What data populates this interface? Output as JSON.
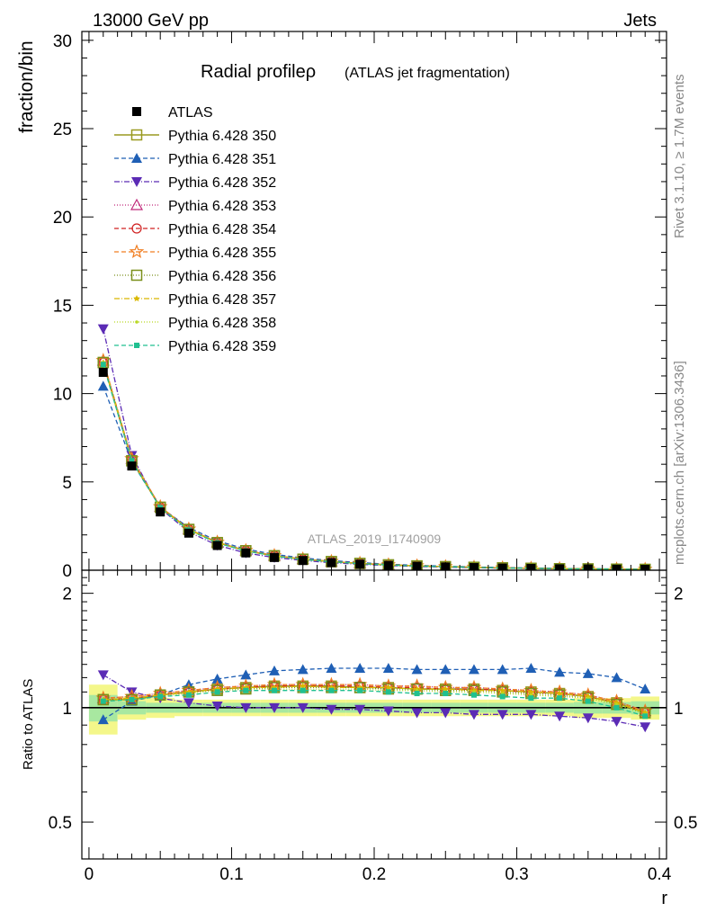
{
  "header": {
    "energy": "13000 GeV pp",
    "process": "Jets"
  },
  "side_text": {
    "rivet": "Rivet 3.1.10, ≥ 1.7M events",
    "mcplots": "mcplots.cern.ch [arXiv:1306.3436]"
  },
  "watermark": "ATLAS_2019_I1740909",
  "chart_data": {
    "type": "line",
    "title": "Radial profileρ",
    "subtitle": "(ATLAS jet fragmentation)",
    "xlabel": "r",
    "ylabel": "fraction/bin",
    "ratio_ylabel": "Ratio to ATLAS",
    "xlim": [
      -0.005,
      0.405
    ],
    "ylim": [
      0,
      30.5
    ],
    "ratio_ylim": [
      0.4,
      2.3
    ],
    "x_ticks": [
      0,
      0.1,
      0.2,
      0.3,
      0.4
    ],
    "x_tick_labels": [
      "0",
      "0.1",
      "0.2",
      "0.3",
      "0.4"
    ],
    "y_ticks": [
      0,
      5,
      10,
      15,
      20,
      25,
      30
    ],
    "y_tick_labels": [
      "0",
      "5",
      "10",
      "15",
      "20",
      "25",
      "30"
    ],
    "ratio_ticks": [
      0.5,
      1,
      2
    ],
    "ratio_tick_labels": [
      "0.5",
      "1",
      "2"
    ],
    "x": [
      0.01,
      0.03,
      0.05,
      0.07,
      0.09,
      0.11,
      0.13,
      0.15,
      0.17,
      0.19,
      0.21,
      0.23,
      0.25,
      0.27,
      0.29,
      0.31,
      0.33,
      0.35,
      0.37,
      0.39
    ],
    "data": {
      "name": "ATLAS",
      "values": [
        11.2,
        5.9,
        3.3,
        2.1,
        1.4,
        0.98,
        0.72,
        0.55,
        0.43,
        0.34,
        0.27,
        0.22,
        0.18,
        0.15,
        0.12,
        0.1,
        0.08,
        0.07,
        0.06,
        0.05
      ],
      "band_outer": [
        0.15,
        0.07,
        0.06,
        0.05,
        0.05,
        0.05,
        0.05,
        0.05,
        0.05,
        0.05,
        0.05,
        0.05,
        0.05,
        0.05,
        0.05,
        0.05,
        0.05,
        0.06,
        0.06,
        0.07
      ],
      "band_inner": [
        0.08,
        0.04,
        0.03,
        0.03,
        0.03,
        0.03,
        0.03,
        0.03,
        0.03,
        0.03,
        0.03,
        0.03,
        0.03,
        0.03,
        0.03,
        0.03,
        0.03,
        0.035,
        0.035,
        0.04
      ]
    },
    "series": [
      {
        "name": "Pythia 6.428 350",
        "color": "#9a9a20",
        "dash": "",
        "marker": "square-open",
        "ratio": [
          1.05,
          1.05,
          1.08,
          1.1,
          1.12,
          1.13,
          1.14,
          1.14,
          1.14,
          1.13,
          1.13,
          1.12,
          1.12,
          1.12,
          1.11,
          1.1,
          1.09,
          1.07,
          1.03,
          0.97
        ]
      },
      {
        "name": "Pythia 6.428 351",
        "color": "#1f5fb5",
        "dash": "5,3",
        "marker": "triangle-up",
        "ratio": [
          0.93,
          1.04,
          1.08,
          1.15,
          1.19,
          1.22,
          1.25,
          1.26,
          1.27,
          1.27,
          1.27,
          1.26,
          1.26,
          1.26,
          1.26,
          1.27,
          1.24,
          1.23,
          1.2,
          1.12
        ]
      },
      {
        "name": "Pythia 6.428 352",
        "color": "#5b2bb5",
        "dash": "6,2,1,2",
        "marker": "triangle-down",
        "ratio": [
          1.22,
          1.1,
          1.06,
          1.03,
          1.01,
          1.0,
          1.0,
          1.0,
          0.99,
          0.99,
          0.98,
          0.97,
          0.97,
          0.96,
          0.96,
          0.96,
          0.95,
          0.94,
          0.92,
          0.89
        ]
      },
      {
        "name": "Pythia 6.428 353",
        "color": "#c0287a",
        "dash": "1,2",
        "marker": "triangle-up-open",
        "ratio": [
          1.06,
          1.07,
          1.09,
          1.11,
          1.13,
          1.14,
          1.15,
          1.15,
          1.15,
          1.15,
          1.14,
          1.14,
          1.13,
          1.13,
          1.12,
          1.11,
          1.1,
          1.08,
          1.04,
          0.98
        ]
      },
      {
        "name": "Pythia 6.428 354",
        "color": "#d02020",
        "dash": "5,3",
        "marker": "circle-open",
        "ratio": [
          1.05,
          1.06,
          1.08,
          1.1,
          1.12,
          1.13,
          1.14,
          1.14,
          1.14,
          1.14,
          1.13,
          1.13,
          1.12,
          1.12,
          1.11,
          1.1,
          1.09,
          1.07,
          1.03,
          0.97
        ]
      },
      {
        "name": "Pythia 6.428 355",
        "color": "#f07d20",
        "dash": "5,3",
        "marker": "star-open",
        "ratio": [
          1.06,
          1.07,
          1.09,
          1.11,
          1.13,
          1.14,
          1.15,
          1.15,
          1.15,
          1.15,
          1.14,
          1.14,
          1.13,
          1.13,
          1.12,
          1.11,
          1.1,
          1.08,
          1.04,
          0.98
        ]
      },
      {
        "name": "Pythia 6.428 356",
        "color": "#7a8f1a",
        "dash": "1,2",
        "marker": "square-open",
        "ratio": [
          1.05,
          1.05,
          1.08,
          1.1,
          1.11,
          1.12,
          1.13,
          1.13,
          1.13,
          1.13,
          1.12,
          1.12,
          1.11,
          1.11,
          1.1,
          1.09,
          1.08,
          1.06,
          1.02,
          0.97
        ]
      },
      {
        "name": "Pythia 6.428 357",
        "color": "#d9b800",
        "dash": "6,2,1,2",
        "marker": "star-small",
        "ratio": [
          1.05,
          1.06,
          1.08,
          1.1,
          1.12,
          1.13,
          1.13,
          1.14,
          1.13,
          1.13,
          1.13,
          1.12,
          1.12,
          1.11,
          1.11,
          1.1,
          1.09,
          1.07,
          1.03,
          0.97
        ]
      },
      {
        "name": "Pythia 6.428 358",
        "color": "#b8d820",
        "dash": "1,2",
        "marker": "dot",
        "ratio": [
          1.05,
          1.05,
          1.07,
          1.09,
          1.11,
          1.12,
          1.12,
          1.12,
          1.12,
          1.12,
          1.11,
          1.11,
          1.1,
          1.1,
          1.09,
          1.08,
          1.07,
          1.06,
          1.02,
          0.96
        ]
      },
      {
        "name": "Pythia 6.428 359",
        "color": "#20c090",
        "dash": "5,3",
        "marker": "square-small",
        "ratio": [
          1.04,
          1.05,
          1.07,
          1.08,
          1.1,
          1.11,
          1.11,
          1.11,
          1.11,
          1.11,
          1.1,
          1.09,
          1.09,
          1.08,
          1.07,
          1.06,
          1.06,
          1.04,
          1.0,
          0.95
        ]
      }
    ]
  }
}
